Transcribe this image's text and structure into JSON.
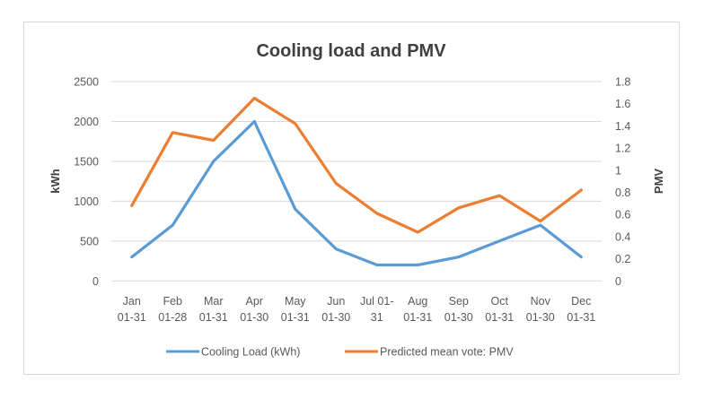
{
  "chart_data": {
    "type": "line",
    "title": "Cooling load and PMV",
    "categories": [
      [
        "Jan",
        "01-31"
      ],
      [
        "Feb",
        "01-28"
      ],
      [
        "Mar",
        "01-31"
      ],
      [
        "Apr",
        "01-30"
      ],
      [
        "May",
        "01-31"
      ],
      [
        "Jun",
        "01-30"
      ],
      [
        "Jul 01-",
        "31"
      ],
      [
        "Aug",
        "01-31"
      ],
      [
        "Sep",
        "01-30"
      ],
      [
        "Oct",
        "01-31"
      ],
      [
        "Nov",
        "01-30"
      ],
      [
        "Dec",
        "01-31"
      ]
    ],
    "series": [
      {
        "name": "Cooling Load (kWh)",
        "axis": "left",
        "color": "#5b9bd5",
        "values": [
          300,
          700,
          1500,
          2000,
          900,
          400,
          200,
          200,
          300,
          500,
          700,
          300
        ]
      },
      {
        "name": "Predicted mean vote: PMV",
        "axis": "right",
        "color": "#ed7d31",
        "values": [
          0.68,
          1.34,
          1.27,
          1.65,
          1.42,
          0.88,
          0.61,
          0.44,
          0.66,
          0.77,
          0.54,
          0.82
        ]
      }
    ],
    "ylabel": "kWh",
    "ylim": [
      0,
      2500
    ],
    "yticks": [
      "0",
      "500",
      "1000",
      "1500",
      "2000",
      "2500"
    ],
    "y2label": "PMV",
    "y2lim": [
      0,
      1.8
    ],
    "y2ticks": [
      "0",
      "0.2",
      "0.4",
      "0.6",
      "0.8",
      "1",
      "1.2",
      "1.4",
      "1.6",
      "1.8"
    ],
    "grid": true,
    "legend": "bottom"
  }
}
